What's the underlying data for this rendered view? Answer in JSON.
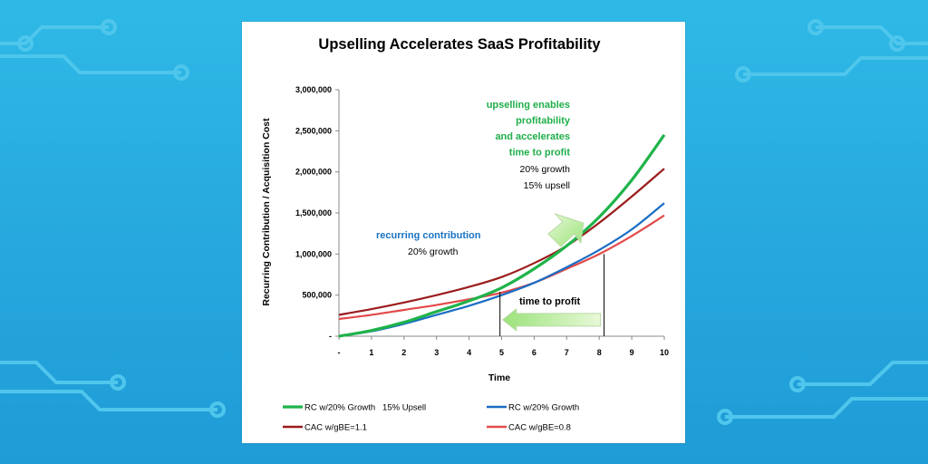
{
  "colors": {
    "background": "#2ab3e2",
    "circuit": "#4fc6ec",
    "green": "#1fb34a",
    "blue": "#1a6ec4",
    "dark_red": "#9b1c1c",
    "light_red": "#e24a4a"
  },
  "chart_data": {
    "type": "line",
    "title": "Upselling Accelerates SaaS Profitability",
    "xlabel": "Time",
    "ylabel": "Recurring Contribution / Acquisition Cost",
    "xlim": [
      0,
      10
    ],
    "ylim": [
      0,
      3000000
    ],
    "x_tick_labels": [
      "-",
      "1",
      "2",
      "3",
      "4",
      "5",
      "6",
      "7",
      "8",
      "9",
      "10"
    ],
    "y_tick_labels": [
      "-",
      "500,000",
      "1,000,000",
      "1,500,000",
      "2,000,000",
      "2,500,000",
      "3,000,000"
    ],
    "y_tick_values": [
      0,
      500000,
      1000000,
      1500000,
      2000000,
      2500000,
      3000000
    ],
    "grid": false,
    "legend_placement": "bottom",
    "x": [
      0,
      1,
      2,
      3,
      4,
      5,
      6,
      7,
      8,
      9,
      10
    ],
    "series": [
      {
        "name": "RC w/20% Growth   15% Upsell",
        "color": "#1fb34a",
        "values": [
          0,
          70000,
          170000,
          300000,
          430000,
          590000,
          820000,
          1100000,
          1450000,
          1900000,
          2450000
        ]
      },
      {
        "name": "RC w/20% Growth",
        "color": "#1a6ec4",
        "values": [
          0,
          60000,
          150000,
          260000,
          370000,
          500000,
          650000,
          840000,
          1050000,
          1300000,
          1620000
        ]
      },
      {
        "name": "CAC w/gBE=1.1",
        "color": "#9b1c1c",
        "values": [
          260000,
          330000,
          410000,
          500000,
          600000,
          720000,
          890000,
          1100000,
          1380000,
          1700000,
          2040000
        ]
      },
      {
        "name": "CAC w/gBE=0.8",
        "color": "#e24a4a",
        "values": [
          210000,
          260000,
          320000,
          380000,
          450000,
          530000,
          650000,
          820000,
          1000000,
          1220000,
          1470000
        ]
      }
    ],
    "annotations": {
      "upsell_lines": [
        "upselling enables",
        "profitability",
        "and accelerates",
        "time to profit"
      ],
      "upsell_growth": "20% growth",
      "upsell_rate": "15% upsell",
      "recurring_title": "recurring contribution",
      "recurring_growth": "20% growth",
      "time_to_profit": "time to profit"
    },
    "markers": {
      "left_x": 4.95,
      "right_x": 8.15,
      "arrow_y": 200000,
      "green_arrow_tip": [
        7.6,
        1400000
      ]
    }
  }
}
